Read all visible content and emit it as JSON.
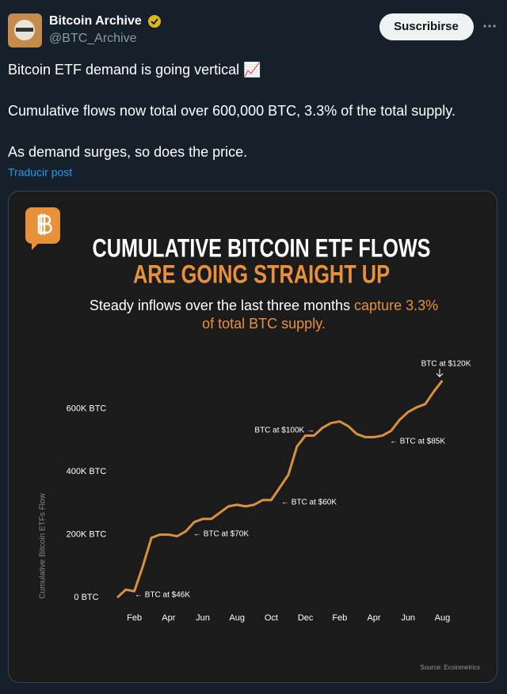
{
  "tweet": {
    "name": "Bitcoin Archive",
    "handle": "@BTC_Archive",
    "button": "Suscribirse",
    "lines": [
      "Bitcoin ETF demand is going vertical 📈",
      "Cumulative flows now total over 600,000 BTC, 3.3% of the total supply.",
      "As demand surges, so does the price."
    ],
    "translate": "Traducir post"
  },
  "chart_data": {
    "type": "line",
    "title": [
      "CUMULATIVE BITCOIN ETF FLOWS",
      "ARE GOING STRAIGHT UP"
    ],
    "subtitle": [
      "Steady inflows over the last three months",
      "capture 3.3%",
      "of total BTC supply."
    ],
    "ylabel": "Cumulative Bitcoin ETFs Flow",
    "source": "Source: Ecoinmetrics",
    "categories": [
      null,
      null,
      "Feb",
      null,
      null,
      null,
      "Apr",
      null,
      null,
      null,
      "Jun",
      null,
      null,
      null,
      "Aug",
      null,
      null,
      null,
      "Oct",
      null,
      null,
      null,
      "Dec",
      null,
      null,
      null,
      "Feb",
      null,
      null,
      null,
      "Apr",
      null,
      null,
      null,
      "Jun",
      null,
      null,
      null,
      "Aug"
    ],
    "series": [
      {
        "color": "#d9913f",
        "values": [
          0,
          25000,
          20000,
          100000,
          190000,
          200000,
          200000,
          195000,
          210000,
          240000,
          250000,
          250000,
          270000,
          290000,
          295000,
          290000,
          295000,
          310000,
          310000,
          350000,
          390000,
          480000,
          515000,
          515000,
          540000,
          555000,
          560000,
          545000,
          520000,
          510000,
          510000,
          515000,
          530000,
          565000,
          590000,
          605000,
          615000,
          655000,
          690000
        ]
      }
    ],
    "ylim": [
      -20000,
      720000
    ],
    "yticks": [
      {
        "value": 0,
        "label": "0 BTC"
      },
      {
        "value": 200000,
        "label": "200K BTC"
      },
      {
        "value": 400000,
        "label": "400K BTC"
      },
      {
        "value": 600000,
        "label": "600K BTC"
      }
    ],
    "annotations": [
      "← BTC at $46K",
      "← BTC at $70K",
      "← BTC at $60K",
      "BTC at $100K →",
      "← BTC at $85K",
      "BTC at $120K"
    ]
  }
}
